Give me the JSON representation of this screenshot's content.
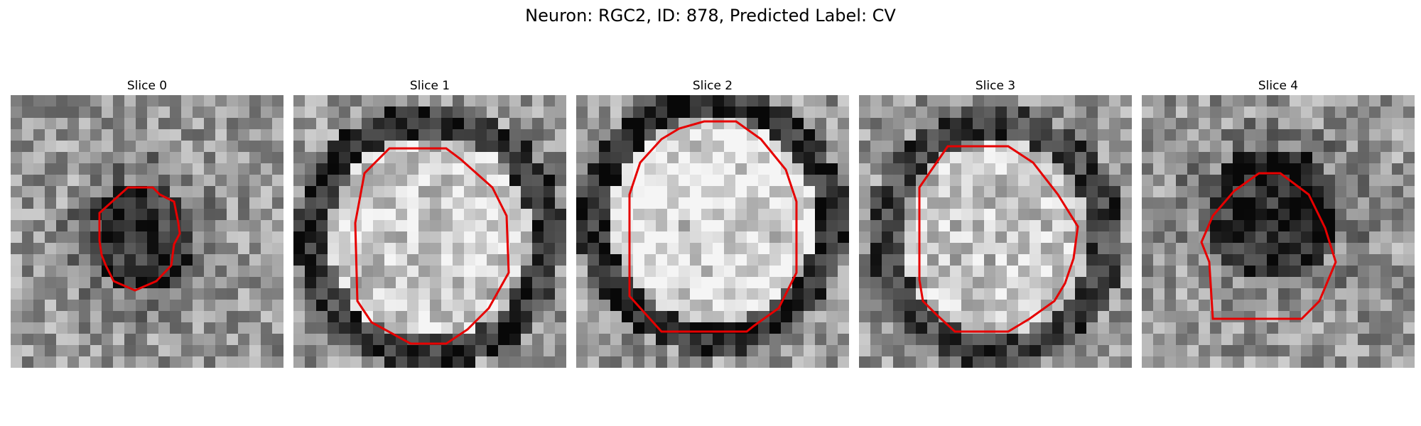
{
  "figure": {
    "title": "Neuron: RGC2, ID: 878, Predicted Label: CV",
    "contour_color": "#e60000"
  },
  "slices": [
    {
      "title": "Slice 0",
      "contour": "small dark region outlined in red, center-left"
    },
    {
      "title": "Slice 1",
      "contour": "large region with bright interior, dark rim, outlined in red"
    },
    {
      "title": "Slice 2",
      "contour": "large bright circular region with dark rim, outlined in red"
    },
    {
      "title": "Slice 3",
      "contour": "medium bright region with dark rim, outlined in red"
    },
    {
      "title": "Slice 4",
      "contour": "dark blob outlined in red, upper-center"
    }
  ]
}
